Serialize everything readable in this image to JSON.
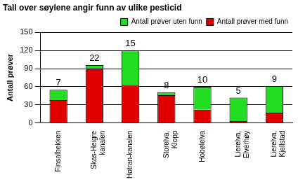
{
  "chart_data": {
    "type": "bar",
    "title": "Tall over søylene angir funn av ulike pesticid",
    "y_label": "Antall prøver",
    "categories": [
      "Finsalbekken",
      "Skas-Heigre kanalen",
      "Hotran-kanalen",
      "Storelva, Klopp",
      "Hobølelva",
      "Lierelva, Elverhøy",
      "Lierelva, Kjellstad"
    ],
    "series": [
      {
        "name": "Antall prøver med funn",
        "color": "#e00000",
        "values": [
          38,
          90,
          63,
          46,
          22,
          3,
          17
        ]
      },
      {
        "name": "Antall prøver uten funn",
        "color": "#22dd22",
        "values": [
          17,
          6,
          57,
          5,
          38,
          39,
          44
        ]
      }
    ],
    "annotations": [
      7,
      22,
      15,
      8,
      10,
      5,
      9
    ],
    "stacked": true,
    "ylim": [
      0,
      150
    ],
    "yticks": [
      0,
      30,
      60,
      90,
      120,
      150
    ],
    "grid": true,
    "legend": "top right"
  }
}
